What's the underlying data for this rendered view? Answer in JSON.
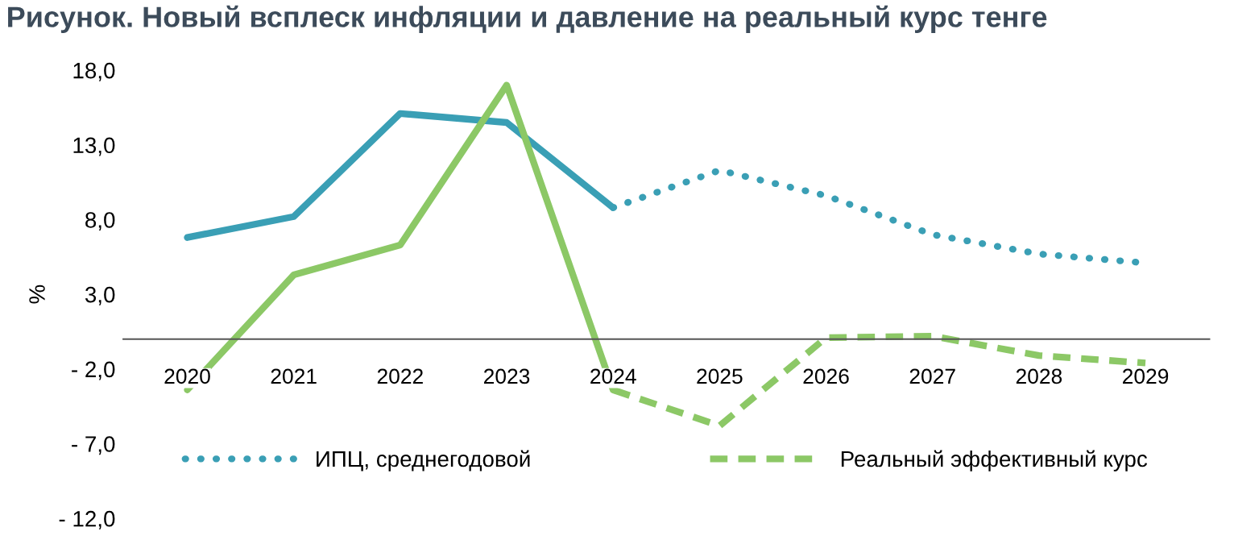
{
  "chart_data": {
    "type": "line",
    "title": "Рисунок. Новый всплеск инфляции и давление на реальный курс тенге",
    "ylabel": "%",
    "categories": [
      "2020",
      "2021",
      "2022",
      "2023",
      "2024",
      "2025",
      "2026",
      "2027",
      "2028",
      "2029"
    ],
    "series": [
      {
        "color": "#3a9fb5",
        "line_style": "solid",
        "values": [
          6.8,
          8.2,
          15.1,
          14.5,
          8.8,
          null,
          null,
          null,
          null,
          null
        ]
      },
      {
        "name": "ИПЦ, среднегодовой",
        "color": "#3a9fb5",
        "line_style": "dotted",
        "values": [
          null,
          null,
          null,
          null,
          8.8,
          11.3,
          9.6,
          7.0,
          5.7,
          5.1
        ]
      },
      {
        "color": "#8cc866",
        "line_style": "solid",
        "values": [
          -3.4,
          4.3,
          6.3,
          17.0,
          -3.4,
          null,
          null,
          null,
          null,
          null
        ]
      },
      {
        "name": "Реальный эффективный курс",
        "color": "#8cc866",
        "line_style": "dashed",
        "values": [
          null,
          null,
          null,
          null,
          -3.4,
          -5.8,
          0.1,
          0.2,
          -1.1,
          -1.6
        ]
      }
    ],
    "ylim": [
      -12,
      18
    ],
    "yticks": [
      {
        "value": 18,
        "label": "18,0"
      },
      {
        "value": 13,
        "label": "13,0"
      },
      {
        "value": 8,
        "label": "8,0"
      },
      {
        "value": 3,
        "label": "3,0"
      },
      {
        "value": -2,
        "label": "- 2,0"
      },
      {
        "value": -7,
        "label": "- 7,0"
      },
      {
        "value": -12,
        "label": "- 12,0"
      }
    ],
    "grid": false,
    "legend": "bottom",
    "marker": "none"
  }
}
